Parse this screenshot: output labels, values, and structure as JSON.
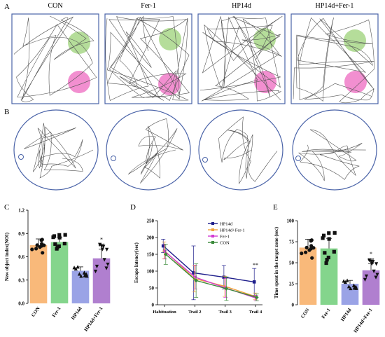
{
  "panels": {
    "a": "A",
    "b": "B",
    "c": "C",
    "d": "D",
    "e": "E"
  },
  "groups": [
    "CON",
    "Fer-1",
    "HP14d",
    "HP14d+Fer-1"
  ],
  "colors": {
    "con": "#f9b97a",
    "fer1": "#84d58c",
    "hp14d": "#9aa3e6",
    "hp14dfer1": "#b07fcf",
    "frame": "#4a63a8",
    "novel": "#f28fd0",
    "familiar": "#b5dd9a"
  },
  "chart_data": [
    {
      "type": "bar",
      "panel": "C",
      "ylabel": "New object index(NOI)",
      "categories": [
        "CON",
        "Fer-1",
        "HP14d",
        "HP14d+Fer-1"
      ],
      "values": [
        0.75,
        0.79,
        0.42,
        0.58
      ],
      "errors": [
        0.08,
        0.06,
        0.05,
        0.12
      ],
      "ylim": [
        0,
        1.2
      ],
      "yticks": [
        "0.0",
        "0.3",
        "0.6",
        "0.9",
        "1.2"
      ],
      "annotations": [
        {
          "category": "HP14d+Fer-1",
          "stars": "*",
          "hashes": "###"
        }
      ]
    },
    {
      "type": "line",
      "panel": "D",
      "ylabel": "Escape latency(sec)",
      "x": [
        "Habituation",
        "Trail 2",
        "Trail 3",
        "Trail 4"
      ],
      "ylim": [
        0,
        250
      ],
      "yticks": [
        "0",
        "50",
        "100",
        "150",
        "200",
        "250"
      ],
      "series": [
        {
          "name": "HP14d",
          "color": "#1f1f8c",
          "values": [
            175,
            95,
            82,
            68
          ],
          "errors": [
            20,
            80,
            35,
            40
          ]
        },
        {
          "name": "HP14d+Fer-1",
          "color": "#f0a33c",
          "values": [
            162,
            78,
            55,
            25
          ],
          "errors": [
            25,
            40,
            30,
            10
          ]
        },
        {
          "name": "Fer-1",
          "color": "#d23ad2",
          "values": [
            158,
            82,
            50,
            20
          ],
          "errors": [
            22,
            35,
            28,
            8
          ]
        },
        {
          "name": "CON",
          "color": "#3a8a3a",
          "values": [
            150,
            72,
            48,
            22
          ],
          "errors": [
            30,
            50,
            35,
            10
          ]
        }
      ],
      "annotations": [
        {
          "x": "Trail 4",
          "text": "**"
        }
      ]
    },
    {
      "type": "bar",
      "panel": "E",
      "ylabel": "Time spent in the target zone (sec)",
      "categories": [
        "CON",
        "Fer-1",
        "HP14d",
        "HP14d+Fer-1"
      ],
      "values": [
        68,
        67,
        25,
        41
      ],
      "errors": [
        10,
        12,
        4,
        8
      ],
      "ylim": [
        0,
        100
      ],
      "yticks": [
        "0",
        "25",
        "50",
        "75",
        "100"
      ],
      "annotations": [
        {
          "category": "HP14d+Fer-1",
          "stars": "*",
          "hashes": "###"
        }
      ]
    }
  ]
}
